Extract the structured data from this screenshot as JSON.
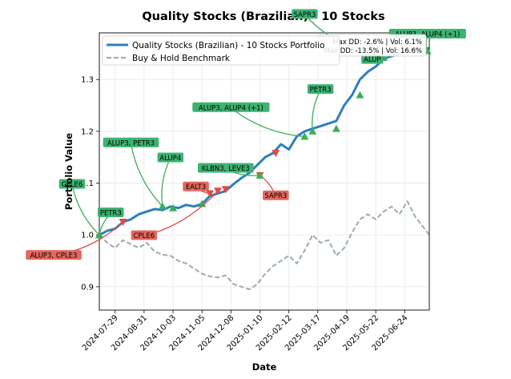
{
  "chart_data": {
    "type": "line",
    "title": "Quality Stocks (Brazilian) - 10 Stocks",
    "xlabel": "Date",
    "ylabel": "Portfolio Value",
    "xlim": [
      "2024-07-11",
      "2025-07-22"
    ],
    "ylim": [
      0.855,
      1.39
    ],
    "x_ticks": [
      "2024-07-29",
      "2024-08-31",
      "2024-10-03",
      "2024-11-05",
      "2024-12-08",
      "2025-01-10",
      "2025-02-12",
      "2025-03-17",
      "2025-04-19",
      "2025-05-22",
      "2025-06-24"
    ],
    "y_ticks": [
      0.9,
      1.0,
      1.1,
      1.2,
      1.3
    ],
    "grid": true,
    "legend_position": "upper-left",
    "series": [
      {
        "name": "Quality Stocks (Brazilian) - 10 Stocks Portfolio",
        "color": "#2e7fc0",
        "style": "solid",
        "points": [
          [
            "2024-07-11",
            1.0
          ],
          [
            "2024-07-20",
            1.008
          ],
          [
            "2024-07-29",
            1.012
          ],
          [
            "2024-08-07",
            1.025
          ],
          [
            "2024-08-16",
            1.03
          ],
          [
            "2024-08-25",
            1.04
          ],
          [
            "2024-09-03",
            1.045
          ],
          [
            "2024-09-12",
            1.05
          ],
          [
            "2024-09-21",
            1.048
          ],
          [
            "2024-09-30",
            1.055
          ],
          [
            "2024-10-09",
            1.052
          ],
          [
            "2024-10-18",
            1.058
          ],
          [
            "2024-10-27",
            1.055
          ],
          [
            "2024-11-05",
            1.06
          ],
          [
            "2024-11-14",
            1.075
          ],
          [
            "2024-11-23",
            1.08
          ],
          [
            "2024-12-02",
            1.085
          ],
          [
            "2024-12-11",
            1.098
          ],
          [
            "2024-12-20",
            1.11
          ],
          [
            "2024-12-29",
            1.12
          ],
          [
            "2025-01-07",
            1.135
          ],
          [
            "2025-01-16",
            1.15
          ],
          [
            "2025-01-25",
            1.158
          ],
          [
            "2025-02-03",
            1.175
          ],
          [
            "2025-02-12",
            1.165
          ],
          [
            "2025-02-21",
            1.19
          ],
          [
            "2025-03-02",
            1.2
          ],
          [
            "2025-03-11",
            1.205
          ],
          [
            "2025-03-20",
            1.21
          ],
          [
            "2025-03-29",
            1.215
          ],
          [
            "2025-04-07",
            1.22
          ],
          [
            "2025-04-16",
            1.25
          ],
          [
            "2025-04-25",
            1.27
          ],
          [
            "2025-05-04",
            1.3
          ],
          [
            "2025-05-13",
            1.315
          ],
          [
            "2025-05-22",
            1.325
          ],
          [
            "2025-05-31",
            1.34
          ],
          [
            "2025-06-09",
            1.345
          ],
          [
            "2025-06-18",
            1.35
          ],
          [
            "2025-06-27",
            1.355
          ],
          [
            "2025-07-06",
            1.358
          ],
          [
            "2025-07-22",
            1.36
          ]
        ],
        "stats_label": "Max DD: -2.6% | Vol: 6.1%"
      },
      {
        "name": "Buy & Hold Benchmark",
        "color": "#9aabad",
        "style": "dashed",
        "points": [
          [
            "2024-07-11",
            1.0
          ],
          [
            "2024-07-20",
            0.985
          ],
          [
            "2024-07-29",
            0.975
          ],
          [
            "2024-08-07",
            0.99
          ],
          [
            "2024-08-16",
            0.982
          ],
          [
            "2024-08-25",
            0.975
          ],
          [
            "2024-09-03",
            0.985
          ],
          [
            "2024-09-12",
            0.968
          ],
          [
            "2024-09-21",
            0.962
          ],
          [
            "2024-09-30",
            0.96
          ],
          [
            "2024-10-09",
            0.95
          ],
          [
            "2024-10-18",
            0.945
          ],
          [
            "2024-10-27",
            0.935
          ],
          [
            "2024-11-05",
            0.925
          ],
          [
            "2024-11-14",
            0.92
          ],
          [
            "2024-11-23",
            0.918
          ],
          [
            "2024-12-02",
            0.922
          ],
          [
            "2024-12-11",
            0.905
          ],
          [
            "2024-12-20",
            0.9
          ],
          [
            "2024-12-29",
            0.895
          ],
          [
            "2025-01-07",
            0.905
          ],
          [
            "2025-01-16",
            0.925
          ],
          [
            "2025-01-25",
            0.94
          ],
          [
            "2025-02-03",
            0.95
          ],
          [
            "2025-02-12",
            0.96
          ],
          [
            "2025-02-21",
            0.945
          ],
          [
            "2025-03-02",
            0.97
          ],
          [
            "2025-03-11",
            1.0
          ],
          [
            "2025-03-20",
            0.985
          ],
          [
            "2025-03-29",
            0.99
          ],
          [
            "2025-04-07",
            0.96
          ],
          [
            "2025-04-16",
            0.975
          ],
          [
            "2025-04-25",
            1.005
          ],
          [
            "2025-05-04",
            1.03
          ],
          [
            "2025-05-13",
            1.04
          ],
          [
            "2025-05-22",
            1.03
          ],
          [
            "2025-05-31",
            1.045
          ],
          [
            "2025-06-09",
            1.055
          ],
          [
            "2025-06-18",
            1.04
          ],
          [
            "2025-06-27",
            1.065
          ],
          [
            "2025-07-06",
            1.035
          ],
          [
            "2025-07-22",
            1.0
          ]
        ],
        "stats_label": "Max DD: -13.5% | Vol: 16.6%"
      }
    ],
    "trades": [
      {
        "date": "2024-07-11",
        "value": 1.0,
        "type": "buy",
        "label": "CPLE6",
        "label_at": [
          "2024-06-10",
          1.097
        ]
      },
      {
        "date": "2024-07-11",
        "value": 1.0,
        "type": "buy",
        "label": "PETR3",
        "label_at": [
          "2024-07-24",
          1.042
        ]
      },
      {
        "date": "2024-08-07",
        "value": 1.025,
        "type": "sell",
        "label": "ALUP3, CPLE3",
        "label_at": [
          "2024-05-20",
          0.96
        ]
      },
      {
        "date": "2024-09-21",
        "value": 1.055,
        "type": "buy",
        "label": "ALUP3, PETR3",
        "label_at": [
          "2024-08-16",
          1.177
        ]
      },
      {
        "date": "2024-09-21",
        "value": 1.055,
        "type": "buy",
        "label": "ALUP4",
        "label_at": [
          "2024-09-30",
          1.148
        ]
      },
      {
        "date": "2024-10-03",
        "value": 1.052,
        "type": "buy",
        "label": "",
        "label_at": null
      },
      {
        "date": "2024-11-05",
        "value": 1.06,
        "type": "buy",
        "label": "",
        "label_at": null
      },
      {
        "date": "2024-11-14",
        "value": 1.08,
        "type": "sell",
        "label": "EALT3",
        "label_at": [
          "2024-10-29",
          1.092
        ]
      },
      {
        "date": "2024-11-23",
        "value": 1.085,
        "type": "sell",
        "label": "CPLE6",
        "label_at": [
          "2024-08-31",
          0.998
        ]
      },
      {
        "date": "2024-12-02",
        "value": 1.088,
        "type": "sell",
        "label": "",
        "label_at": null
      },
      {
        "date": "2025-01-10",
        "value": 1.115,
        "type": "sell",
        "label": "SAPR3",
        "label_at": [
          "2025-01-28",
          1.075
        ]
      },
      {
        "date": "2025-01-10",
        "value": 1.115,
        "type": "buy",
        "label": "KLBN3, LEVE3",
        "label_at": [
          "2024-12-02",
          1.128
        ]
      },
      {
        "date": "2025-01-28",
        "value": 1.158,
        "type": "sell",
        "label": "",
        "label_at": null
      },
      {
        "date": "2025-03-02",
        "value": 1.19,
        "type": "buy",
        "label": "ALUP3, ALUP4 (+1)",
        "label_at": [
          "2024-12-08",
          1.245
        ]
      },
      {
        "date": "2025-03-11",
        "value": 1.2,
        "type": "buy",
        "label": "PETR3",
        "label_at": [
          "2025-03-20",
          1.28
        ]
      },
      {
        "date": "2025-04-07",
        "value": 1.205,
        "type": "buy",
        "label": "",
        "label_at": null
      },
      {
        "date": "2025-05-04",
        "value": 1.27,
        "type": "buy",
        "label": "",
        "label_at": null
      },
      {
        "date": "2025-05-22",
        "value": 1.345,
        "type": "buy",
        "label": "SAPR3",
        "label_at": [
          "2025-03-02",
          1.425
        ]
      },
      {
        "date": "2025-05-31",
        "value": 1.342,
        "type": "buy",
        "label": "ALUP",
        "label_at": [
          "2025-05-18",
          1.338
        ]
      },
      {
        "date": "2025-07-20",
        "value": 1.355,
        "type": "buy",
        "label": "ALUP3, ALUP4 (+1)",
        "label_at": [
          "2025-07-20",
          1.387
        ]
      }
    ]
  },
  "colors": {
    "buy": "#3aae5a",
    "sell": "#dd4c43",
    "buy_label_bg": "#3cb371",
    "sell_label_bg": "#e4675d"
  }
}
